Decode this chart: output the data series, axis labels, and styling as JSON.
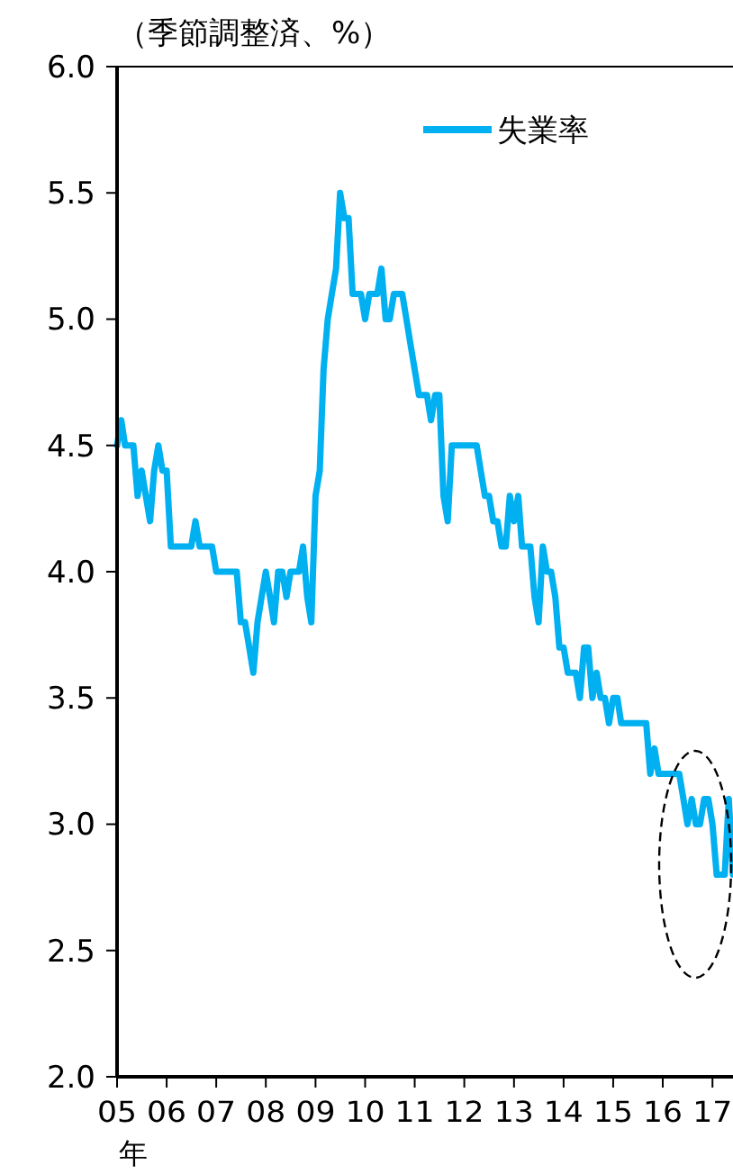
{
  "chart_data": {
    "type": "line",
    "ylabel": "（季節調整済、%）",
    "xlabel": "年",
    "xlim": [
      "2005-01",
      "2017-06"
    ],
    "xticks": [
      {
        "value": "2005-01",
        "label": "05"
      },
      {
        "value": "2006-01",
        "label": "06"
      },
      {
        "value": "2007-01",
        "label": "07"
      },
      {
        "value": "2008-01",
        "label": "08"
      },
      {
        "value": "2009-01",
        "label": "09"
      },
      {
        "value": "2010-01",
        "label": "10"
      },
      {
        "value": "2011-01",
        "label": "11"
      },
      {
        "value": "2012-01",
        "label": "12"
      },
      {
        "value": "2013-01",
        "label": "13"
      },
      {
        "value": "2014-01",
        "label": "14"
      },
      {
        "value": "2015-01",
        "label": "15"
      },
      {
        "value": "2016-01",
        "label": "16"
      },
      {
        "value": "2017-01",
        "label": "17"
      }
    ],
    "ylim": [
      2,
      6
    ],
    "yticks": [
      {
        "value": 2,
        "label": "2.0"
      },
      {
        "value": 2.5,
        "label": "2.5"
      },
      {
        "value": 3,
        "label": "3.0"
      },
      {
        "value": 3.5,
        "label": "3.5"
      },
      {
        "value": 4,
        "label": "4.0"
      },
      {
        "value": 4.5,
        "label": "4.5"
      },
      {
        "value": 5,
        "label": "5.0"
      },
      {
        "value": 5.5,
        "label": "5.5"
      },
      {
        "value": 6,
        "label": "6.0"
      }
    ],
    "grid": false,
    "legend": "top right",
    "marker": "none",
    "line_style": "solid",
    "series": [
      {
        "name": "失業率",
        "color": "#00b0f0",
        "values": [
          4.5,
          4.6,
          4.5,
          4.5,
          4.5,
          4.3,
          4.4,
          4.3,
          4.2,
          4.4,
          4.5,
          4.4,
          4.4,
          4.1,
          4.1,
          4.1,
          4.1,
          4.1,
          4.1,
          4.2,
          4.1,
          4.1,
          4.1,
          4.1,
          4.0,
          4.0,
          4.0,
          4.0,
          4.0,
          4.0,
          3.8,
          3.8,
          3.7,
          3.6,
          3.8,
          3.9,
          4.0,
          3.9,
          3.8,
          4.0,
          4.0,
          3.9,
          4.0,
          4.0,
          4.0,
          4.1,
          3.9,
          3.8,
          4.3,
          4.4,
          4.8,
          5.0,
          5.1,
          5.2,
          5.5,
          5.4,
          5.4,
          5.1,
          5.1,
          5.1,
          5.0,
          5.1,
          5.1,
          5.1,
          5.2,
          5.0,
          5.0,
          5.1,
          5.1,
          5.1,
          5.0,
          4.9,
          4.8,
          4.7,
          4.7,
          4.7,
          4.6,
          4.7,
          4.7,
          4.3,
          4.2,
          4.5,
          4.5,
          4.5,
          4.5,
          4.5,
          4.5,
          4.5,
          4.4,
          4.3,
          4.3,
          4.2,
          4.2,
          4.1,
          4.1,
          4.3,
          4.2,
          4.3,
          4.1,
          4.1,
          4.1,
          3.9,
          3.8,
          4.1,
          4.0,
          4.0,
          3.9,
          3.7,
          3.7,
          3.6,
          3.6,
          3.6,
          3.5,
          3.7,
          3.7,
          3.5,
          3.6,
          3.5,
          3.5,
          3.4,
          3.5,
          3.5,
          3.4,
          3.4,
          3.4,
          3.4,
          3.4,
          3.4,
          3.4,
          3.2,
          3.3,
          3.2,
          3.2,
          3.2,
          3.2,
          3.2,
          3.2,
          3.1,
          3.0,
          3.1,
          3.0,
          3.0,
          3.1,
          3.1,
          3.0,
          2.8,
          2.8,
          2.8,
          3.1,
          2.8
        ],
        "x": [
          "2005-01",
          "2005-02",
          "2005-03",
          "2005-04",
          "2005-05",
          "2005-06",
          "2005-07",
          "2005-08",
          "2005-09",
          "2005-10",
          "2005-11",
          "2005-12",
          "2006-01",
          "2006-02",
          "2006-03",
          "2006-04",
          "2006-05",
          "2006-06",
          "2006-07",
          "2006-08",
          "2006-09",
          "2006-10",
          "2006-11",
          "2006-12",
          "2007-01",
          "2007-02",
          "2007-03",
          "2007-04",
          "2007-05",
          "2007-06",
          "2007-07",
          "2007-08",
          "2007-09",
          "2007-10",
          "2007-11",
          "2007-12",
          "2008-01",
          "2008-02",
          "2008-03",
          "2008-04",
          "2008-05",
          "2008-06",
          "2008-07",
          "2008-08",
          "2008-09",
          "2008-10",
          "2008-11",
          "2008-12",
          "2009-01",
          "2009-02",
          "2009-03",
          "2009-04",
          "2009-05",
          "2009-06",
          "2009-07",
          "2009-08",
          "2009-09",
          "2009-10",
          "2009-11",
          "2009-12",
          "2010-01",
          "2010-02",
          "2010-03",
          "2010-04",
          "2010-05",
          "2010-06",
          "2010-07",
          "2010-08",
          "2010-09",
          "2010-10",
          "2010-11",
          "2010-12",
          "2011-01",
          "2011-02",
          "2011-03",
          "2011-04",
          "2011-05",
          "2011-06",
          "2011-07",
          "2011-08",
          "2011-09",
          "2011-10",
          "2011-11",
          "2011-12",
          "2012-01",
          "2012-02",
          "2012-03",
          "2012-04",
          "2012-05",
          "2012-06",
          "2012-07",
          "2012-08",
          "2012-09",
          "2012-10",
          "2012-11",
          "2012-12",
          "2013-01",
          "2013-02",
          "2013-03",
          "2013-04",
          "2013-05",
          "2013-06",
          "2013-07",
          "2013-08",
          "2013-09",
          "2013-10",
          "2013-11",
          "2013-12",
          "2014-01",
          "2014-02",
          "2014-03",
          "2014-04",
          "2014-05",
          "2014-06",
          "2014-07",
          "2014-08",
          "2014-09",
          "2014-10",
          "2014-11",
          "2014-12",
          "2015-01",
          "2015-02",
          "2015-03",
          "2015-04",
          "2015-05",
          "2015-06",
          "2015-07",
          "2015-08",
          "2015-09",
          "2015-10",
          "2015-11",
          "2015-12",
          "2016-01",
          "2016-02",
          "2016-03",
          "2016-04",
          "2016-05",
          "2016-06",
          "2016-07",
          "2016-08",
          "2016-09",
          "2016-10",
          "2016-11",
          "2016-12",
          "2017-01",
          "2017-02",
          "2017-03",
          "2017-04",
          "2017-05",
          "2017-06"
        ]
      }
    ]
  }
}
